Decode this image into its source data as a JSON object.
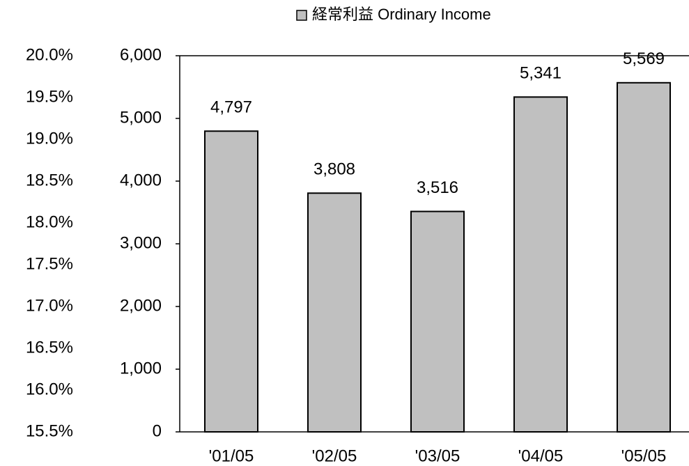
{
  "chart_data": {
    "type": "bar",
    "categories": [
      "'01/05",
      "'02/05",
      "'03/05",
      "'04/05",
      "'05/05"
    ],
    "series": [
      {
        "name": "経常利益 Ordinary Income",
        "color": "#c0c0c0",
        "values": [
          4797,
          3808,
          3516,
          5341,
          5569
        ],
        "value_labels": [
          "4,797",
          "3,808",
          "3,516",
          "5,341",
          "5,569"
        ]
      }
    ],
    "ylim": [
      0,
      6000
    ],
    "yticks": [
      0,
      {
        "value": 1000,
        "label": "1,000"
      },
      {
        "value": 2000,
        "label": "2,000"
      },
      {
        "value": 3000,
        "label": "3,000"
      },
      {
        "value": 4000,
        "label": "4,000"
      },
      {
        "value": 5000,
        "label": "5,000"
      },
      {
        "value": 6000,
        "label": "6,000"
      }
    ],
    "y2lim": [
      15.5,
      20
    ],
    "y2ticks": [
      {
        "value": 15.5,
        "label": "15.5%"
      },
      {
        "value": 16,
        "label": "16.0%"
      },
      {
        "value": 16.5,
        "label": "16.5%"
      },
      {
        "value": 17,
        "label": "17.0%"
      },
      {
        "value": 17.5,
        "label": "17.5%"
      },
      {
        "value": 18,
        "label": "18.0%"
      },
      {
        "value": 18.5,
        "label": "18.5%"
      },
      {
        "value": 19,
        "label": "19.0%"
      },
      {
        "value": 19.5,
        "label": "19.5%"
      },
      {
        "value": 20,
        "label": "20.0%"
      }
    ],
    "grid": false
  }
}
